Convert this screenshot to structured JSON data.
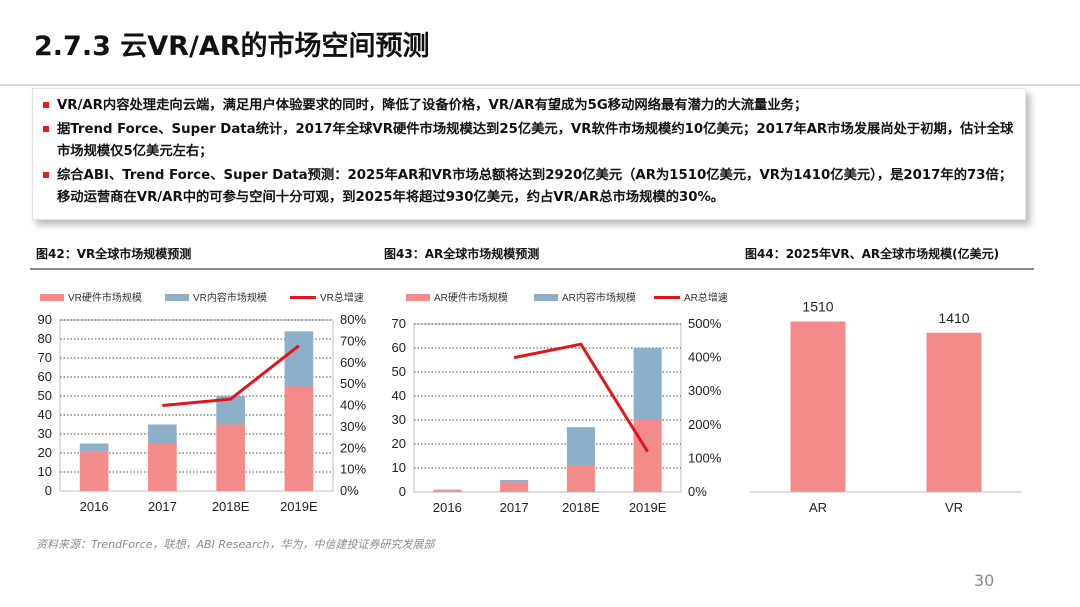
{
  "header": {
    "title": "2.7.3 云VR/AR的市场空间预测"
  },
  "bullets": [
    "VR/AR内容处理走向云端，满足用户体验要求的同时，降低了设备价格，VR/AR有望成为5G移动网络最有潜力的大流量业务；",
    "据Trend Force、Super Data统计，2017年全球VR硬件市场规模达到25亿美元，VR软件市场规模约10亿美元；2017年AR市场发展尚处于初期，估计全球市场规模仅5亿美元左右；",
    "综合ABI、Trend Force、Super Data预测：2025年AR和VR市场总额将达到2920亿美元（AR为1510亿美元，VR为1410亿美元），是2017年的73倍；移动运营商在VR/AR中的可参与空间十分可观，到2025年将超过930亿美元，约占VR/AR总市场规模的30%。"
  ],
  "figures": {
    "fig42_title": "图42：VR全球市场规模预测",
    "fig43_title": "图43：AR全球市场规模预测",
    "fig44_title": "图44：2025年VR、AR全球市场规模(亿美元)"
  },
  "source": "资料来源：TrendForce，联想，ABI Research，华为，中信建投证券研究发展部",
  "page_number": "30",
  "colors": {
    "hardware": "#f48b8b",
    "content": "#8eafc8",
    "growth": "#e0161c",
    "bullet": "#e02020"
  },
  "chart_data": [
    {
      "type": "bar",
      "stacked": true,
      "categories": [
        "2016",
        "2017",
        "2018E",
        "2019E"
      ],
      "series": [
        {
          "name": "VR硬件市场规模",
          "values": [
            21,
            25,
            35,
            55
          ],
          "color": "#f48b8b"
        },
        {
          "name": "VR内容市场规模",
          "values": [
            4,
            10,
            15,
            29
          ],
          "color": "#8eafc8"
        }
      ],
      "line_series": {
        "name": "VR总增速",
        "values": [
          null,
          0.4,
          0.43,
          0.68
        ],
        "color": "#e0161c",
        "axis": "right"
      },
      "ylim": [
        0,
        90
      ],
      "yticks": [
        0,
        10,
        20,
        30,
        40,
        50,
        60,
        70,
        80,
        90
      ],
      "y2lim": [
        0,
        0.8
      ],
      "y2ticks": [
        "0%",
        "10%",
        "20%",
        "30%",
        "40%",
        "50%",
        "60%",
        "70%",
        "80%"
      ],
      "grid": true,
      "legend": "top"
    },
    {
      "type": "bar",
      "stacked": true,
      "categories": [
        "2016",
        "2017",
        "2018E",
        "2019E"
      ],
      "series": [
        {
          "name": "AR硬件市场规模",
          "values": [
            0.8,
            4,
            11,
            30
          ],
          "color": "#f48b8b"
        },
        {
          "name": "AR内容市场规模",
          "values": [
            0.2,
            1,
            16,
            30
          ],
          "color": "#8eafc8"
        }
      ],
      "line_series": {
        "name": "AR总增速",
        "values": [
          null,
          4.0,
          4.4,
          1.2
        ],
        "color": "#e0161c",
        "axis": "right"
      },
      "ylim": [
        0,
        70
      ],
      "yticks": [
        0,
        10,
        20,
        30,
        40,
        50,
        60,
        70
      ],
      "y2lim": [
        0,
        5.0
      ],
      "y2ticks": [
        "0%",
        "100%",
        "200%",
        "300%",
        "400%",
        "500%"
      ],
      "grid": true,
      "legend": "top"
    },
    {
      "type": "bar",
      "categories": [
        "AR",
        "VR"
      ],
      "values": [
        1510,
        1410
      ],
      "data_labels": [
        "1510",
        "1410"
      ],
      "color": "#f48b8b",
      "grid": false
    }
  ]
}
